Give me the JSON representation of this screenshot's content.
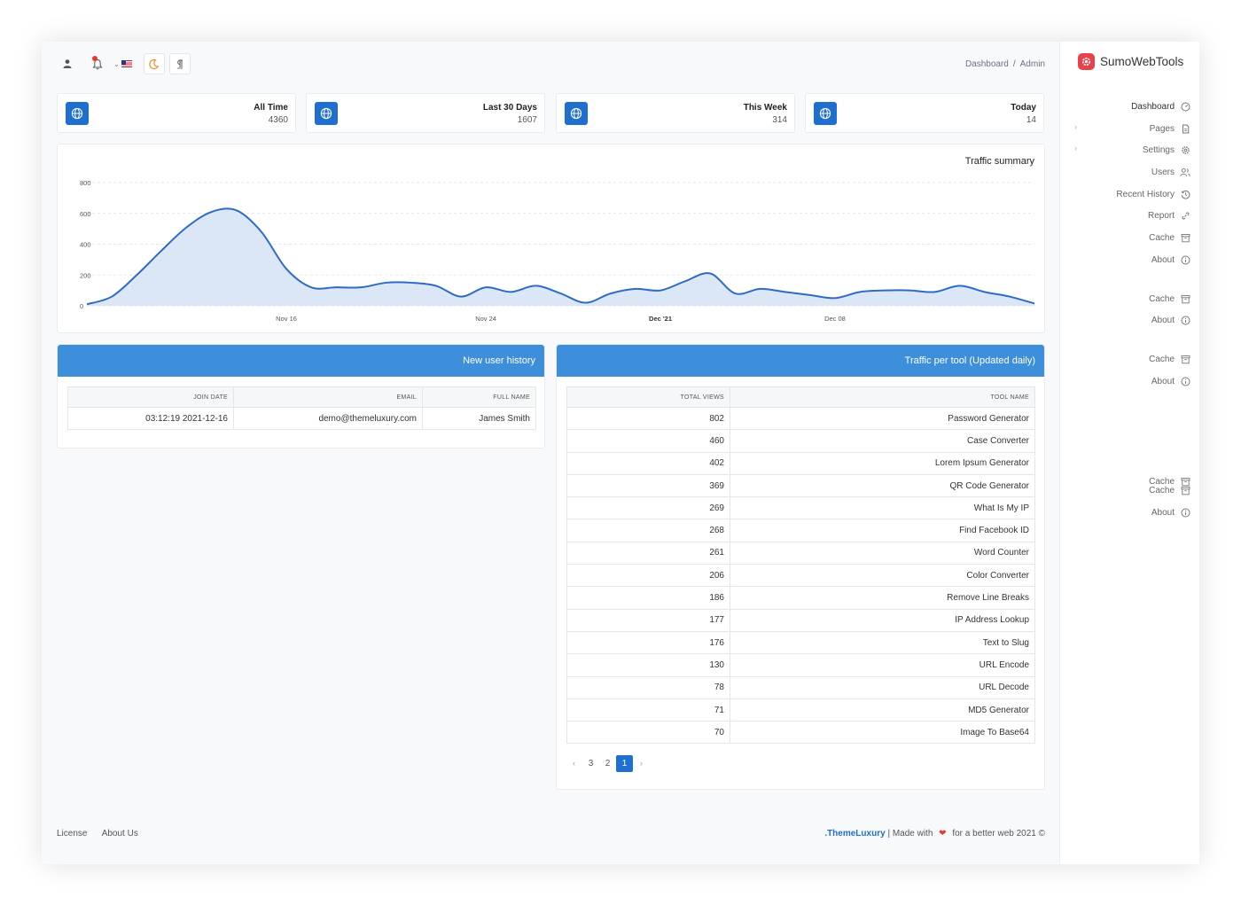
{
  "header": {
    "breadcrumb": [
      "Dashboard",
      "Admin"
    ],
    "icons": [
      "user-icon",
      "bell-icon",
      "us-flag-icon",
      "moon-icon",
      "pilcrow-icon"
    ]
  },
  "stats": [
    {
      "label": "All Time",
      "value": "4360"
    },
    {
      "label": "Last 30 Days",
      "value": "1607"
    },
    {
      "label": "This Week",
      "value": "314"
    },
    {
      "label": "Today",
      "value": "14"
    }
  ],
  "chart": {
    "title": "Traffic summary"
  },
  "chart_data": {
    "type": "area",
    "title": "Traffic summary",
    "xlabel": "",
    "ylabel": "",
    "ylim": [
      0,
      800
    ],
    "yticks": [
      "0",
      "200",
      "400",
      "600",
      "800"
    ],
    "xticks": [
      {
        "label": "Nov 16",
        "day": 8,
        "bold": false
      },
      {
        "label": "Nov 24",
        "day": 16,
        "bold": false
      },
      {
        "label": "Dec '21",
        "day": 23,
        "bold": true
      },
      {
        "label": "Dec 08",
        "day": 30,
        "bold": false
      }
    ],
    "grid": true,
    "series": [
      {
        "color": "#2d6cc4",
        "fill": "#dbe6f6",
        "values": [
          10,
          60,
          200,
          360,
          510,
          610,
          620,
          480,
          240,
          120,
          120,
          120,
          150,
          150,
          130,
          60,
          120,
          90,
          130,
          80,
          20,
          80,
          110,
          100,
          160,
          210,
          80,
          110,
          90,
          70,
          50,
          90,
          100,
          100,
          90,
          130,
          90,
          60,
          15
        ]
      }
    ]
  },
  "users_panel": {
    "title": "New user history",
    "columns": [
      "JOIN DATE",
      "EMAIL",
      "FULL NAME"
    ],
    "rows": [
      {
        "join_date": "03:12:19 2021-12-16",
        "email": "demo@themeluxury.com",
        "full_name": "James Smith"
      }
    ]
  },
  "traffic_panel": {
    "title": "Traffic per tool (Updated daily)",
    "columns": [
      "TOTAL VIEWS",
      "TOOL NAME"
    ],
    "rows": [
      {
        "views": "802",
        "tool": "Password Generator"
      },
      {
        "views": "460",
        "tool": "Case Converter"
      },
      {
        "views": "402",
        "tool": "Lorem Ipsum Generator"
      },
      {
        "views": "369",
        "tool": "QR Code Generator"
      },
      {
        "views": "269",
        "tool": "What Is My IP"
      },
      {
        "views": "268",
        "tool": "Find Facebook ID"
      },
      {
        "views": "261",
        "tool": "Word Counter"
      },
      {
        "views": "206",
        "tool": "Color Converter"
      },
      {
        "views": "186",
        "tool": "Remove Line Breaks"
      },
      {
        "views": "177",
        "tool": "IP Address Lookup"
      },
      {
        "views": "176",
        "tool": "Text to Slug"
      },
      {
        "views": "130",
        "tool": "URL Encode"
      },
      {
        "views": "78",
        "tool": "URL Decode"
      },
      {
        "views": "71",
        "tool": "MD5 Generator"
      },
      {
        "views": "70",
        "tool": "Image To Base64"
      }
    ],
    "pagination": {
      "prev": "‹",
      "pages": [
        "3",
        "2",
        "1"
      ],
      "active": "1",
      "next": "›"
    }
  },
  "footer": {
    "links": [
      "License",
      "About Us"
    ],
    "brand": ".ThemeLuxury",
    "made_with": "| Made with",
    "tagline": "for a better web 2021 ©"
  },
  "sidebar": {
    "logo": "SumoWebTools",
    "items": [
      {
        "label": "Dashboard",
        "icon": "dashboard-icon",
        "expandable": false
      },
      {
        "label": "Pages",
        "icon": "file-icon",
        "expandable": true
      },
      {
        "label": "Settings",
        "icon": "gear-icon",
        "expandable": true
      },
      {
        "label": "Users",
        "icon": "users-icon",
        "expandable": false
      },
      {
        "label": "Recent History",
        "icon": "history-icon",
        "expandable": false
      },
      {
        "label": "Report",
        "icon": "link-icon",
        "expandable": false
      },
      {
        "label": "Cache",
        "icon": "archive-icon",
        "expandable": false
      },
      {
        "label": "About",
        "icon": "info-icon",
        "expandable": false
      },
      {
        "label": "Cache",
        "icon": "archive-icon",
        "expandable": false
      },
      {
        "label": "About",
        "icon": "info-icon",
        "expandable": false
      },
      {
        "label": "Cache",
        "icon": "archive-icon",
        "expandable": false
      },
      {
        "label": "About",
        "icon": "info-icon",
        "expandable": false
      },
      {
        "label": "Cache",
        "icon": "archive-icon",
        "expandable": false
      },
      {
        "label": "Cache",
        "icon": "archive-icon",
        "expandable": false
      },
      {
        "label": "About",
        "icon": "info-icon",
        "expandable": false
      }
    ]
  }
}
